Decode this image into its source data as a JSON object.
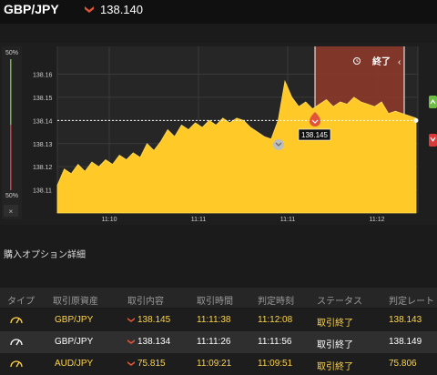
{
  "header": {
    "pair": "GBP/JPY",
    "direction_icon": "down-arrow-icon",
    "price": "138.140"
  },
  "chart": {
    "left_bar_top_label": "50%",
    "left_bar_bottom_label": "50%",
    "close_label": "×",
    "end_label": "終了",
    "marker_price": "138.145",
    "colors": {
      "area": "#ffc928",
      "expiry_zone": "#8b3a2a",
      "marker": "#e2543a",
      "up": "#6dbd45",
      "down": "#d93b3b"
    },
    "chart_data": {
      "type": "area",
      "ylim": [
        138.1,
        138.172
      ],
      "y_ticks": [
        "138.16",
        "138.15",
        "138.14",
        "138.13",
        "138.12",
        "138.11"
      ],
      "y_tick_values": [
        138.16,
        138.15,
        138.14,
        138.13,
        138.12,
        138.11
      ],
      "x_ticks": [
        "11:10",
        "11:11",
        "11:11",
        "11:12"
      ],
      "current_price": 138.14,
      "values": [
        138.112,
        138.119,
        138.117,
        138.121,
        138.118,
        138.122,
        138.12,
        138.123,
        138.121,
        138.125,
        138.123,
        138.126,
        138.124,
        138.13,
        138.127,
        138.131,
        138.136,
        138.133,
        138.138,
        138.136,
        138.139,
        138.137,
        138.14,
        138.138,
        138.141,
        138.139,
        138.141,
        138.14,
        138.137,
        138.135,
        138.133,
        138.132,
        138.14,
        138.157,
        138.15,
        138.146,
        138.148,
        138.145,
        138.147,
        138.149,
        138.146,
        138.148,
        138.147,
        138.15,
        138.148,
        138.147,
        138.146,
        138.148,
        138.143,
        138.144,
        138.143,
        138.142,
        138.141
      ]
    }
  },
  "section_title": "購入オプション詳細",
  "table": {
    "columns": [
      "タイプ",
      "取引原資産",
      "取引内容",
      "取引時間",
      "判定時刻",
      "ステータス",
      "判定レート"
    ],
    "rows": [
      {
        "type_icon": "gauge-icon",
        "asset": "GBP/JPY",
        "direction_icon": "down-arrow-icon",
        "content": "138.145",
        "trade_time": "11:11:38",
        "judge_time": "11:12:08",
        "status": "取引終了",
        "rate": "138.143"
      },
      {
        "type_icon": "gauge-icon",
        "asset": "GBP/JPY",
        "direction_icon": "down-arrow-icon",
        "content": "138.134",
        "trade_time": "11:11:26",
        "judge_time": "11:11:56",
        "status": "取引終了",
        "rate": "138.149"
      },
      {
        "type_icon": "gauge-icon",
        "asset": "AUD/JPY",
        "direction_icon": "down-arrow-icon",
        "content": "75.815",
        "trade_time": "11:09:21",
        "judge_time": "11:09:51",
        "status": "取引終了",
        "rate": "75.806"
      }
    ]
  }
}
